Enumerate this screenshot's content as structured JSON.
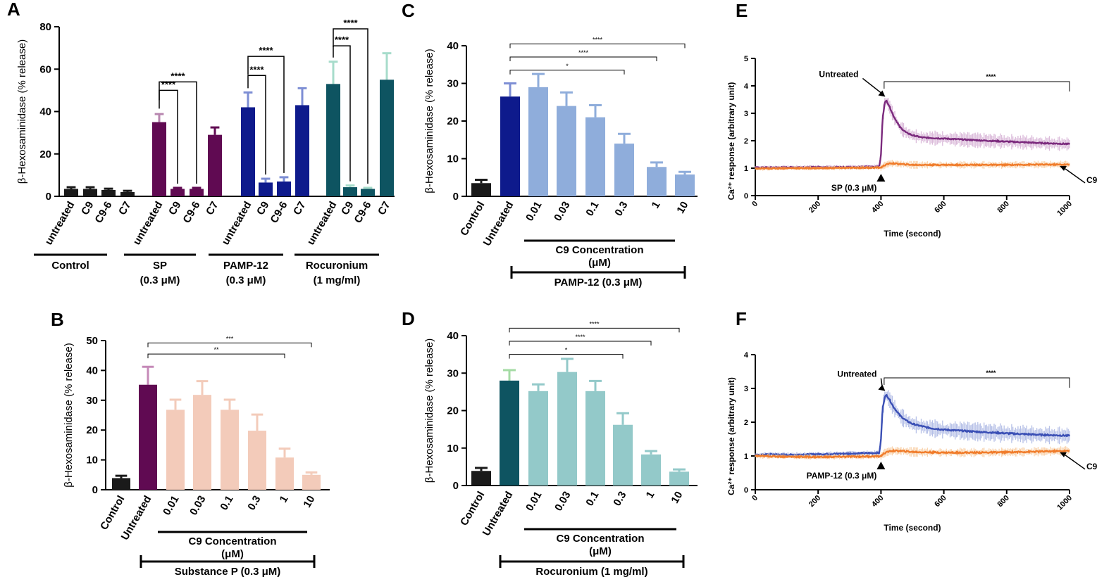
{
  "chart_data": [
    {
      "panel": "A",
      "type": "bar",
      "ylabel": "β-Hexosaminidase (% release)",
      "ylim": [
        0,
        80
      ],
      "yticks": [
        "0",
        "20",
        "40",
        "60",
        "80"
      ],
      "categories": [
        "untreated",
        "C9",
        "C9-6",
        "C7",
        "untreated",
        "C9",
        "C9-6",
        "C7",
        "untreated",
        "C9",
        "C9-6",
        "C7",
        "untreated",
        "C9",
        "C9-6",
        "C7"
      ],
      "values": [
        3.5,
        3.5,
        3,
        2,
        35,
        3.5,
        3.5,
        29,
        42,
        6.5,
        7,
        43,
        53,
        4.3,
        3.5,
        55
      ],
      "errors": [
        0.8,
        0.8,
        0.6,
        0.6,
        3.8,
        0.5,
        0.5,
        3.5,
        7,
        1.8,
        2,
        8,
        10.5,
        0.8,
        0.5,
        12.5
      ],
      "colors": [
        "#1a1a1a",
        "#1a1a1a",
        "#1a1a1a",
        "#1a1a1a",
        "#600a52",
        "#600a52",
        "#600a52",
        "#600a52",
        "#0e1a8c",
        "#0e1a8c",
        "#0e1a8c",
        "#0e1a8c",
        "#0e5461",
        "#0e5461",
        "#0e5461",
        "#0e5461"
      ],
      "errColors": [
        "#1a1a1a",
        "#1a1a1a",
        "#1a1a1a",
        "#1a1a1a",
        "#b887b0",
        "#600a52",
        "#600a52",
        "#600a52",
        "#7d8ed4",
        "#7d8ed4",
        "#7d8ed4",
        "#7d8ed4",
        "#a7dccb",
        "#a7dccb",
        "#a7dccb",
        "#a7dccb"
      ],
      "groups": [
        {
          "lines": [
            "Control"
          ]
        },
        {
          "lines": [
            "SP",
            "(0.3 μM)"
          ]
        },
        {
          "lines": [
            "PAMP-12",
            "(0.3 μM)"
          ]
        },
        {
          "lines": [
            "Rocuronium",
            "(1 mg/ml)"
          ]
        }
      ],
      "significance": [
        {
          "from": 4,
          "to": 5,
          "y": 50,
          "label": "****"
        },
        {
          "from": 4,
          "to": 6,
          "y": 54,
          "label": "****"
        },
        {
          "from": 8,
          "to": 9,
          "y": 57,
          "label": "****"
        },
        {
          "from": 8,
          "to": 10,
          "y": 66,
          "label": "****"
        },
        {
          "from": 12,
          "to": 13,
          "y": 71,
          "label": "****"
        },
        {
          "from": 12,
          "to": 14,
          "y": 79,
          "label": "****"
        }
      ]
    },
    {
      "panel": "B",
      "type": "bar",
      "ylabel": "β-Hexosaminidase (% release)",
      "ylim": [
        0,
        50
      ],
      "yticks": [
        "0",
        "10",
        "20",
        "30",
        "40",
        "50"
      ],
      "categories": [
        "Control",
        "Untreated",
        "0.01",
        "0.03",
        "0.1",
        "0.3",
        "1",
        "10"
      ],
      "values": [
        3.9,
        35.2,
        26.8,
        31.8,
        26.8,
        19.8,
        10.8,
        5
      ],
      "errors": [
        0.8,
        6,
        3.4,
        4.6,
        3.4,
        5.4,
        3,
        0.8
      ],
      "colors": [
        "#1a1a1a",
        "#600a52",
        "#f3cbba",
        "#f3cbba",
        "#f3cbba",
        "#f3cbba",
        "#f3cbba",
        "#f3cbba"
      ],
      "errColors": [
        "#1a1a1a",
        "#c589b8",
        "#f3cbba",
        "#f3cbba",
        "#f3cbba",
        "#f3cbba",
        "#f3cbba",
        "#f3cbba"
      ],
      "concentration_label": [
        "C9 Concentration",
        "(μM)"
      ],
      "stimulus_label": "Substance P (0.3 μM)",
      "significance": [
        {
          "from": 1,
          "to": 6,
          "y": 45.5,
          "label": "**"
        },
        {
          "from": 1,
          "to": 7,
          "y": 49.2,
          "label": "***"
        }
      ]
    },
    {
      "panel": "C",
      "type": "bar",
      "ylabel": "β-Hexosaminidase (% release)",
      "ylim": [
        0,
        40
      ],
      "yticks": [
        "0",
        "10",
        "20",
        "30",
        "40"
      ],
      "categories": [
        "Control",
        "Untreated",
        "0.01",
        "0.03",
        "0.1",
        "0.3",
        "1",
        "10"
      ],
      "values": [
        3.5,
        26.5,
        29,
        24,
        21,
        14,
        7.8,
        5.8
      ],
      "errors": [
        0.9,
        3.5,
        3.5,
        3.6,
        3.2,
        2.6,
        1.2,
        0.7
      ],
      "colors": [
        "#1a1a1a",
        "#0e1a8c",
        "#8faddb",
        "#8faddb",
        "#8faddb",
        "#8faddb",
        "#8faddb",
        "#8faddb"
      ],
      "errColors": [
        "#1a1a1a",
        "#7d8ed4",
        "#8faddb",
        "#8faddb",
        "#8faddb",
        "#8faddb",
        "#8faddb",
        "#8faddb"
      ],
      "concentration_label": [
        "C9 Concentration",
        "(μM)"
      ],
      "stimulus_label": "PAMP-12 (0.3 μM)",
      "significance": [
        {
          "from": 1,
          "to": 5,
          "y": 33.5,
          "label": "*"
        },
        {
          "from": 1,
          "to": 6,
          "y": 37,
          "label": "****"
        },
        {
          "from": 1,
          "to": 7,
          "y": 40.5,
          "label": "****"
        }
      ]
    },
    {
      "panel": "D",
      "type": "bar",
      "ylabel": "β-Hexosaminidase (% release)",
      "ylim": [
        0,
        40
      ],
      "yticks": [
        "0",
        "10",
        "20",
        "30",
        "40"
      ],
      "categories": [
        "Control",
        "Untreated",
        "0.01",
        "0.03",
        "0.1",
        "0.3",
        "1",
        "10"
      ],
      "values": [
        3.9,
        28,
        25.2,
        30.3,
        25.2,
        16.2,
        8.3,
        3.7
      ],
      "errors": [
        0.8,
        2.8,
        1.8,
        3.5,
        2.7,
        3.1,
        0.9,
        0.6
      ],
      "colors": [
        "#1a1a1a",
        "#0e5461",
        "#93c9c9",
        "#93c9c9",
        "#93c9c9",
        "#93c9c9",
        "#93c9c9",
        "#93c9c9"
      ],
      "errColors": [
        "#1a1a1a",
        "#a4dba4",
        "#93c9c9",
        "#93c9c9",
        "#93c9c9",
        "#93c9c9",
        "#93c9c9",
        "#93c9c9"
      ],
      "concentration_label": [
        "C9 Concentration",
        "(μM)"
      ],
      "stimulus_label": "Rocuronium (1 mg/ml)",
      "significance": [
        {
          "from": 1,
          "to": 5,
          "y": 35,
          "label": "*"
        },
        {
          "from": 1,
          "to": 6,
          "y": 38.5,
          "label": "****"
        },
        {
          "from": 1,
          "to": 7,
          "y": 42,
          "label": "****"
        }
      ]
    },
    {
      "panel": "E",
      "type": "line",
      "xlabel": "Time (second)",
      "ylabel": "Ca²⁺ response (arbitrary unit)",
      "xlim": [
        0,
        1000
      ],
      "ylim": [
        0,
        5
      ],
      "xticks": [
        "0",
        "200",
        "400",
        "600",
        "800",
        "1000"
      ],
      "yticks": [
        "0",
        "1",
        "2",
        "3",
        "4",
        "5"
      ],
      "series": [
        {
          "name": "Untreated",
          "color": "#7b2a7d",
          "band": "#d7b4d6",
          "x": [
            0,
            100,
            200,
            300,
            395,
            400,
            405,
            412,
            418,
            425,
            440,
            460,
            480,
            500,
            530,
            560,
            600,
            650,
            700,
            800,
            900,
            1000
          ],
          "y": [
            1.02,
            1.03,
            1.04,
            1.04,
            1.06,
            1.5,
            2.8,
            3.4,
            3.45,
            3.3,
            2.9,
            2.5,
            2.3,
            2.2,
            2.12,
            2.1,
            2.08,
            2.05,
            2.02,
            1.97,
            1.92,
            1.88
          ]
        },
        {
          "name": "C9",
          "color": "#f07c2b",
          "band": "#f8cfa6",
          "x": [
            0,
            100,
            200,
            300,
            395,
            400,
            410,
            430,
            460,
            500,
            600,
            700,
            800,
            900,
            1000
          ],
          "y": [
            0.98,
            1.0,
            1.0,
            1.01,
            1.02,
            1.02,
            1.1,
            1.18,
            1.15,
            1.12,
            1.12,
            1.12,
            1.12,
            1.13,
            1.13
          ]
        }
      ],
      "annotations": {
        "untreated": "Untreated",
        "stimulus": "SP (0.3 μM)",
        "c9": "C9",
        "sig": "****"
      }
    },
    {
      "panel": "F",
      "type": "line",
      "xlabel": "Time (second)",
      "ylabel": "Ca²⁺ response (arbitrary unit)",
      "xlim": [
        0,
        1000
      ],
      "ylim": [
        0,
        4
      ],
      "xticks": [
        "0",
        "200",
        "400",
        "600",
        "800",
        "1000"
      ],
      "yticks": [
        "0",
        "1",
        "2",
        "3",
        "4"
      ],
      "series": [
        {
          "name": "Untreated",
          "color": "#3a4fb5",
          "band": "#aeb9e4",
          "x": [
            0,
            50,
            100,
            200,
            300,
            395,
            400,
            405,
            412,
            418,
            425,
            440,
            460,
            480,
            500,
            530,
            560,
            600,
            700,
            800,
            900,
            1000
          ],
          "y": [
            1.02,
            1.05,
            1.03,
            1.05,
            1.07,
            1.09,
            1.5,
            2.4,
            2.75,
            2.8,
            2.7,
            2.45,
            2.2,
            2.05,
            1.95,
            1.88,
            1.82,
            1.78,
            1.72,
            1.67,
            1.63,
            1.6
          ]
        },
        {
          "name": "C9",
          "color": "#f07c2b",
          "band": "#f8cfa6",
          "x": [
            0,
            100,
            200,
            300,
            395,
            400,
            410,
            430,
            460,
            500,
            600,
            700,
            800,
            900,
            1000
          ],
          "y": [
            1.0,
            0.98,
            0.97,
            0.98,
            0.99,
            1.0,
            1.08,
            1.15,
            1.15,
            1.12,
            1.1,
            1.1,
            1.11,
            1.13,
            1.15
          ]
        }
      ],
      "annotations": {
        "untreated": "Untreated",
        "stimulus": "PAMP-12 (0.3 μM)",
        "c9": "C9",
        "sig": "****"
      }
    }
  ]
}
